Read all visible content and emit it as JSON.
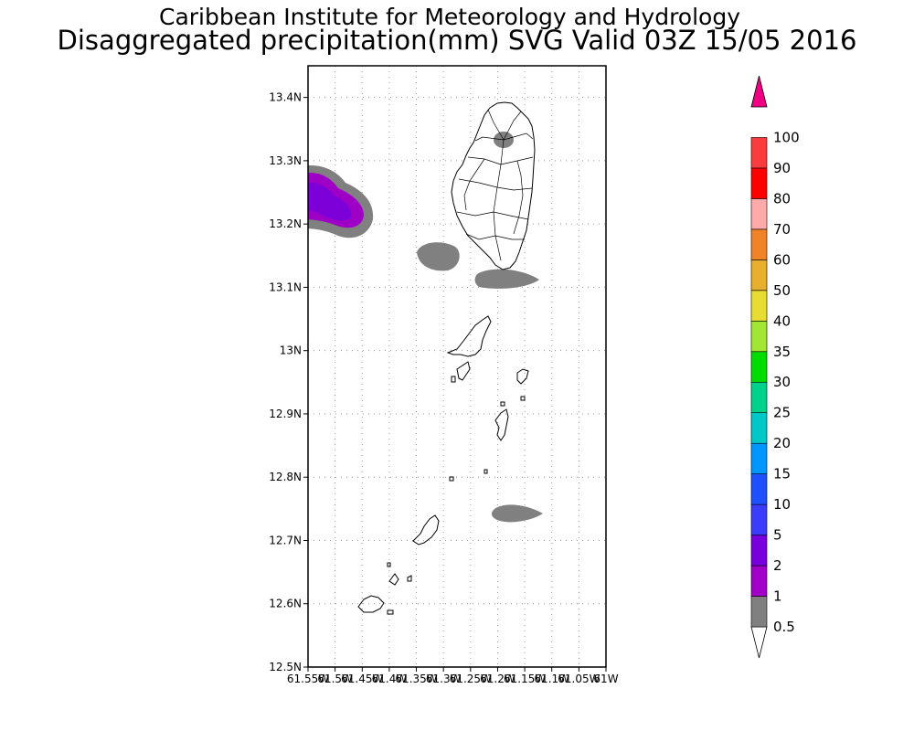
{
  "titles": {
    "line1": "Caribbean Institute for Meteorology and Hydrology",
    "line2": "Disaggregated precipitation(mm) SVG Valid 03Z 15/05 2016"
  },
  "map": {
    "lon_range": [
      -61.55,
      -61.0
    ],
    "lat_range": [
      12.5,
      13.45
    ],
    "x_ticks": [
      {
        "value": -61.55,
        "label": "61.55W"
      },
      {
        "value": -61.5,
        "label": "61.5W"
      },
      {
        "value": -61.45,
        "label": "61.45W"
      },
      {
        "value": -61.4,
        "label": "61.4W"
      },
      {
        "value": -61.35,
        "label": "61.35W"
      },
      {
        "value": -61.3,
        "label": "61.3W"
      },
      {
        "value": -61.25,
        "label": "61.25W"
      },
      {
        "value": -61.2,
        "label": "61.2W"
      },
      {
        "value": -61.15,
        "label": "61.15W"
      },
      {
        "value": -61.1,
        "label": "61.1W"
      },
      {
        "value": -61.05,
        "label": "61.05W"
      },
      {
        "value": -61.0,
        "label": "61W"
      }
    ],
    "y_ticks": [
      {
        "value": 12.5,
        "label": "12.5N"
      },
      {
        "value": 12.6,
        "label": "12.6N"
      },
      {
        "value": 12.7,
        "label": "12.7N"
      },
      {
        "value": 12.8,
        "label": "12.8N"
      },
      {
        "value": 12.9,
        "label": "12.9N"
      },
      {
        "value": 13.0,
        "label": "13N"
      },
      {
        "value": 13.1,
        "label": "13.1N"
      },
      {
        "value": 13.2,
        "label": "13.2N"
      },
      {
        "value": 13.3,
        "label": "13.3N"
      },
      {
        "value": 13.4,
        "label": "13.4N"
      }
    ],
    "grid": true,
    "precip_areas": [
      {
        "name": "west-rain-cell",
        "lon": -61.5,
        "lat": 13.23,
        "bin": "2"
      },
      {
        "name": "central-small-cell",
        "lon": -61.31,
        "lat": 13.15,
        "bin": "0.5"
      },
      {
        "name": "south-st-vincent-cell",
        "lon": -61.19,
        "lat": 13.1,
        "bin": "0.5"
      },
      {
        "name": "st-vincent-peak-cell",
        "lon": -61.18,
        "lat": 13.33,
        "bin": "0.5"
      },
      {
        "name": "southern-cell",
        "lon": -61.16,
        "lat": 12.74,
        "bin": "0.5"
      }
    ]
  },
  "colorbar": {
    "levels": [
      "0.5",
      "1",
      "2",
      "5",
      "10",
      "15",
      "20",
      "25",
      "30",
      "35",
      "40",
      "50",
      "60",
      "70",
      "80",
      "90",
      "100"
    ],
    "colors": [
      "#808080",
      "#a000c8",
      "#7800dc",
      "#3c3cff",
      "#1e50ff",
      "#0096ff",
      "#00c8c8",
      "#00d28c",
      "#00dc00",
      "#a0e632",
      "#e6dc32",
      "#e6af2d",
      "#f08228",
      "#ffaaaa",
      "#ff0000",
      "#fa3c3c",
      "#f00082"
    ]
  }
}
